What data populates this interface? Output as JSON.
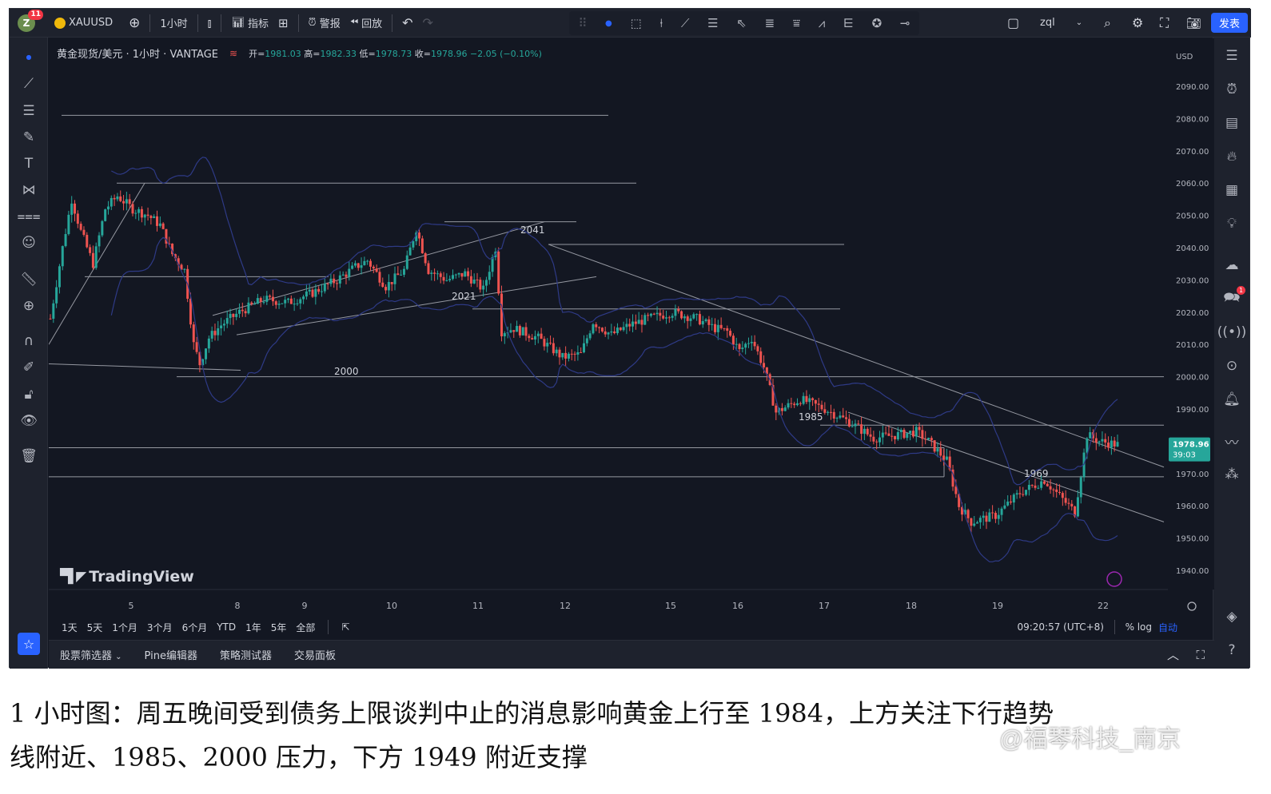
{
  "topbar": {
    "avatar_letter": "Z",
    "notif_count": "11",
    "symbol": "XAUUSD",
    "interval": "1小时",
    "indicators": "指标",
    "alerts": "警报",
    "replay": "回放",
    "layout_name": "zql",
    "publish": "发表"
  },
  "legend": {
    "title": "黄金现货/美元 · 1小时 · VANTAGE",
    "open_label": "开=",
    "open": "1981.03",
    "high_label": "高=",
    "high": "1982.33",
    "low_label": "低=",
    "low": "1978.73",
    "close_label": "收=",
    "close": "1978.96",
    "change": "−2.05 (−0.10%)"
  },
  "price_axis": {
    "currency": "USD",
    "labels": [
      "2090.00",
      "2080.00",
      "2070.00",
      "2060.00",
      "2050.00",
      "2040.00",
      "2030.00",
      "2020.00",
      "2010.00",
      "2000.00",
      "1990.00",
      "1970.00",
      "1960.00",
      "1950.00",
      "1940.00"
    ],
    "current_price": "1978.96",
    "countdown": "39:03"
  },
  "time_axis": {
    "labels": [
      "5",
      "8",
      "9",
      "10",
      "11",
      "12",
      "15",
      "16",
      "17",
      "18",
      "19",
      "22"
    ]
  },
  "annotations": [
    "2041",
    "2021",
    "2000",
    "1985",
    "1969"
  ],
  "brand": "TradingView",
  "timeframes": [
    "1天",
    "5天",
    "1个月",
    "3个月",
    "6个月",
    "YTD",
    "1年",
    "5年",
    "全部"
  ],
  "clock": "09:20:57 (UTC+8)",
  "scale_options": {
    "percent": "%",
    "log": "log",
    "auto": "自动"
  },
  "panels": [
    "股票筛选器",
    "Pine编辑器",
    "策略测试器",
    "交易面板"
  ],
  "caption": {
    "line1": "1 小时图：周五晚间受到债务上限谈判中止的消息影响黄金上行至 1984，上方关注下行趋势",
    "line2": "线附近、1985、2000 压力，下方 1949 附近支撑"
  },
  "watermark": "@福琴科技_南京",
  "colors": {
    "up": "#26a69a",
    "down": "#ef5350",
    "background": "#131722",
    "accent": "#2962ff"
  },
  "chart_data": {
    "type": "candlestick",
    "title": "黄金现货/美元 · 1小时 · VANTAGE",
    "ylim": [
      1935,
      2092
    ],
    "x_labels": [
      "5",
      "8",
      "9",
      "10",
      "11",
      "12",
      "15",
      "16",
      "17",
      "18",
      "19",
      "22"
    ],
    "last_close": 1978.96,
    "horizontal_levels": [
      2081,
      2060,
      2048,
      2041,
      2031,
      2021,
      2000,
      1985,
      1978,
      1969
    ],
    "path_points": [
      [
        0,
        2018
      ],
      [
        4,
        2040
      ],
      [
        7,
        2055
      ],
      [
        10,
        2045
      ],
      [
        14,
        2035
      ],
      [
        18,
        2052
      ],
      [
        22,
        2056
      ],
      [
        27,
        2052
      ],
      [
        32,
        2050
      ],
      [
        36,
        2047
      ],
      [
        40,
        2038
      ],
      [
        44,
        2033
      ],
      [
        47,
        2010
      ],
      [
        49,
        2004
      ],
      [
        52,
        2012
      ],
      [
        56,
        2016
      ],
      [
        62,
        2020
      ],
      [
        70,
        2024
      ],
      [
        78,
        2023
      ],
      [
        86,
        2026
      ],
      [
        94,
        2030
      ],
      [
        100,
        2034
      ],
      [
        104,
        2036
      ],
      [
        110,
        2028
      ],
      [
        116,
        2033
      ],
      [
        120,
        2046
      ],
      [
        124,
        2033
      ],
      [
        130,
        2030
      ],
      [
        136,
        2032
      ],
      [
        142,
        2027
      ],
      [
        146,
        2040
      ],
      [
        148,
        2014
      ],
      [
        152,
        2015
      ],
      [
        160,
        2012
      ],
      [
        168,
        2006
      ],
      [
        174,
        2007
      ],
      [
        178,
        2017
      ],
      [
        184,
        2013
      ],
      [
        190,
        2016
      ],
      [
        196,
        2018
      ],
      [
        204,
        2020
      ],
      [
        212,
        2018
      ],
      [
        218,
        2015
      ],
      [
        222,
        2014
      ],
      [
        226,
        2008
      ],
      [
        230,
        2012
      ],
      [
        234,
        2003
      ],
      [
        238,
        1989
      ],
      [
        246,
        1993
      ],
      [
        254,
        1990
      ],
      [
        262,
        1986
      ],
      [
        270,
        1981
      ],
      [
        278,
        1982
      ],
      [
        284,
        1983
      ],
      [
        288,
        1980
      ],
      [
        294,
        1974
      ],
      [
        298,
        1960
      ],
      [
        302,
        1955
      ],
      [
        310,
        1957
      ],
      [
        318,
        1964
      ],
      [
        326,
        1968
      ],
      [
        332,
        1962
      ],
      [
        336,
        1958
      ],
      [
        340,
        1982
      ],
      [
        344,
        1980
      ],
      [
        350,
        1978.96
      ]
    ]
  }
}
